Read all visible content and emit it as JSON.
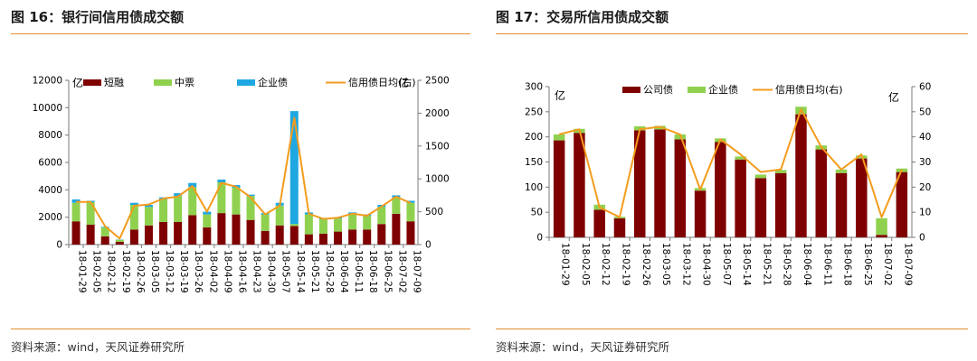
{
  "left_panel": {
    "title": "图 16：银行间信用债成交额",
    "source": "资料来源：wind，天风证券研究所"
  },
  "right_panel": {
    "title": "图 17：交易所信用债成交额",
    "source": "资料来源：wind，天风证券研究所"
  },
  "chart_data": [
    {
      "type": "bar",
      "stacked": true,
      "title": "图 16：银行间信用债成交额",
      "ylabel": "亿",
      "y2label": "亿",
      "ylim": [
        0,
        12000
      ],
      "yticks": [
        0,
        2000,
        4000,
        6000,
        8000,
        10000,
        12000
      ],
      "y2lim": [
        0,
        2500
      ],
      "y2ticks": [
        0,
        500,
        1000,
        1500,
        2000,
        2500
      ],
      "legend_position": "top",
      "categories": [
        "18-01-29",
        "18-02-05",
        "18-02-12",
        "18-02-19",
        "18-02-26",
        "18-03-05",
        "18-03-12",
        "18-03-19",
        "18-03-26",
        "18-04-02",
        "18-04-09",
        "18-04-16",
        "18-04-23",
        "18-04-30",
        "18-05-07",
        "18-05-14",
        "18-05-21",
        "18-05-28",
        "18-06-04",
        "18-06-11",
        "18-06-18",
        "18-06-25",
        "18-07-02",
        "18-07-09"
      ],
      "series": [
        {
          "name": "短融",
          "kind": "bar",
          "axis": "left",
          "color": "#7f0000",
          "values": [
            1700,
            1450,
            600,
            200,
            1100,
            1400,
            1650,
            1650,
            2150,
            1250,
            2300,
            2200,
            1800,
            1000,
            1400,
            1350,
            750,
            800,
            950,
            1100,
            1100,
            1500,
            2250,
            1700
          ]
        },
        {
          "name": "中票",
          "kind": "bar",
          "axis": "left",
          "color": "#8fd14f",
          "values": [
            1350,
            1650,
            650,
            150,
            1800,
            1350,
            1650,
            1900,
            2050,
            950,
            2250,
            1950,
            1750,
            1200,
            1450,
            150,
            1450,
            1050,
            950,
            1150,
            1000,
            1250,
            1200,
            1350
          ]
        },
        {
          "name": "企业债",
          "kind": "bar",
          "axis": "left",
          "color": "#1fa7e1",
          "values": [
            250,
            100,
            50,
            20,
            150,
            150,
            150,
            200,
            300,
            200,
            200,
            200,
            100,
            100,
            200,
            8250,
            150,
            100,
            100,
            100,
            100,
            150,
            150,
            150
          ]
        },
        {
          "name": "信用债日均(右)",
          "kind": "line",
          "axis": "right",
          "color": "#f39c1d",
          "values": [
            650,
            650,
            280,
            90,
            590,
            610,
            700,
            730,
            890,
            500,
            940,
            880,
            720,
            460,
            590,
            1930,
            470,
            390,
            410,
            470,
            440,
            580,
            730,
            630
          ]
        }
      ]
    },
    {
      "type": "bar",
      "stacked": true,
      "title": "图 17：交易所信用债成交额",
      "ylabel": "亿",
      "y2label": "亿",
      "ylim": [
        0,
        300
      ],
      "yticks": [
        0,
        50,
        100,
        150,
        200,
        250,
        300
      ],
      "y2lim": [
        0,
        60
      ],
      "y2ticks": [
        0,
        10,
        20,
        30,
        40,
        50,
        60
      ],
      "legend_position": "top",
      "categories": [
        "18-01-29",
        "18-02-05",
        "18-02-12",
        "18-02-19",
        "18-02-26",
        "18-03-05",
        "18-03-12",
        "18-04-30",
        "18-05-07",
        "18-05-14",
        "18-05-21",
        "18-05-28",
        "18-06-04",
        "18-06-11",
        "18-06-18",
        "18-06-25",
        "18-07-02",
        "18-07-09"
      ],
      "series": [
        {
          "name": "公司债",
          "kind": "bar",
          "axis": "left",
          "color": "#7f0000",
          "values": [
            193,
            208,
            55,
            38,
            213,
            215,
            195,
            93,
            190,
            155,
            118,
            128,
            245,
            175,
            128,
            157,
            5,
            130
          ]
        },
        {
          "name": "企业债",
          "kind": "bar",
          "axis": "left",
          "color": "#8fd14f",
          "values": [
            12,
            8,
            10,
            3,
            8,
            7,
            10,
            5,
            7,
            6,
            7,
            6,
            15,
            8,
            7,
            6,
            33,
            7
          ]
        },
        {
          "name": "信用债日均(右)",
          "kind": "line",
          "axis": "right",
          "color": "#f39c1d",
          "values": [
            41,
            43,
            12,
            8,
            43,
            44,
            41,
            19,
            39,
            33,
            26,
            27,
            51,
            36,
            27,
            33,
            8,
            27
          ]
        }
      ]
    }
  ]
}
